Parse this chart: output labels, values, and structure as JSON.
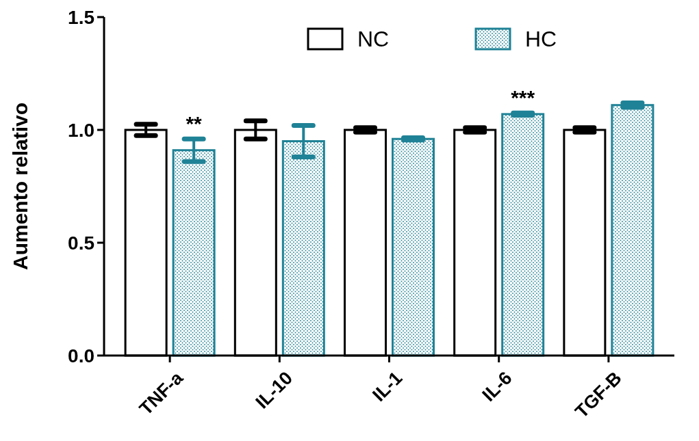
{
  "chart_data": {
    "type": "bar",
    "ylabel": "Aumento relativo",
    "categories": [
      "TNF-a",
      "IL-10",
      "IL-1",
      "IL-6",
      "TGF-B"
    ],
    "series": [
      {
        "name": "NC",
        "color": "#000000",
        "values": [
          1.0,
          1.0,
          1.0,
          1.0,
          1.0
        ],
        "errors": [
          0.025,
          0.04,
          0.01,
          0.01,
          0.01
        ]
      },
      {
        "name": "HC",
        "color": "#1f8296",
        "values": [
          0.91,
          0.95,
          0.96,
          1.07,
          1.11
        ],
        "errors": [
          0.05,
          0.07,
          0.005,
          0.005,
          0.01
        ]
      }
    ],
    "ylim": [
      0,
      1.5
    ],
    "yticks": [
      {
        "value": 0,
        "label": "0.0"
      },
      {
        "value": 0.5,
        "label": "0.5"
      },
      {
        "value": 1,
        "label": "1.0"
      },
      {
        "value": 1.5,
        "label": "1.5"
      }
    ],
    "annotations": [
      {
        "text": "**",
        "x": "TNF-a",
        "y": 0.91
      },
      {
        "text": "***",
        "x": "IL-6",
        "y": 1.07
      }
    ],
    "legend": "top",
    "grid": false
  }
}
